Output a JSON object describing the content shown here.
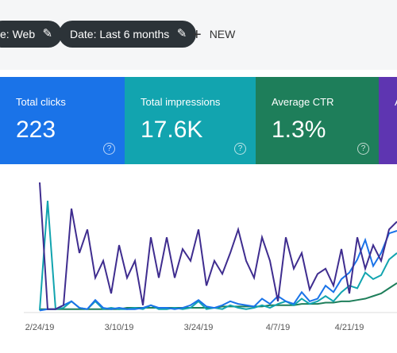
{
  "toolbar": {
    "chips": [
      "e: Web",
      "Date: Last 6 months"
    ],
    "new_button": "NEW"
  },
  "cards": [
    {
      "label": "Total clicks",
      "value": "223",
      "color": "#1a73e8"
    },
    {
      "label": "Total impressions",
      "value": "17.6K",
      "color": "#12a4af"
    },
    {
      "label": "Average CTR",
      "value": "1.3%",
      "color": "#1e7e5a"
    },
    {
      "label": "A",
      "value": "",
      "color": "#5e35b1"
    }
  ],
  "chart_data": {
    "type": "line",
    "categories": [
      "2/24/19",
      null,
      null,
      null,
      null,
      null,
      null,
      null,
      null,
      null,
      "3/10/19",
      null,
      null,
      null,
      null,
      null,
      null,
      null,
      null,
      null,
      "3/24/19",
      null,
      null,
      null,
      null,
      null,
      null,
      null,
      null,
      null,
      "4/7/19",
      null,
      null,
      null,
      null,
      null,
      null,
      null,
      null,
      "4/21/19",
      null,
      null,
      null,
      null,
      null,
      null
    ],
    "series": [
      {
        "color": "#3f2d8f",
        "values": [
          99,
          2,
          2,
          5,
          79,
          45,
          63,
          26,
          39,
          14,
          51,
          26,
          39,
          5,
          57,
          26,
          57,
          26,
          48,
          39,
          63,
          20,
          39,
          29,
          45,
          63,
          39,
          26,
          57,
          39,
          8,
          57,
          33,
          45,
          17,
          29,
          33,
          20,
          48,
          14,
          57,
          33,
          51,
          39,
          63,
          69
        ]
      },
      {
        "color": "#1a73e8",
        "values": [
          1,
          2,
          2,
          5,
          8,
          3,
          2,
          9,
          3,
          2,
          3,
          2,
          2,
          3,
          5,
          3,
          3,
          2,
          3,
          5,
          9,
          4,
          3,
          5,
          8,
          6,
          5,
          4,
          10,
          6,
          12,
          8,
          6,
          15,
          8,
          10,
          20,
          15,
          25,
          30,
          40,
          55,
          35,
          45,
          60,
          62
        ]
      },
      {
        "color": "#12a4af",
        "values": [
          1,
          85,
          2,
          3,
          8,
          3,
          2,
          8,
          2,
          3,
          2,
          2,
          3,
          2,
          5,
          2,
          2,
          3,
          2,
          3,
          8,
          2,
          3,
          2,
          5,
          3,
          2,
          3,
          5,
          3,
          6,
          8,
          5,
          10,
          6,
          8,
          12,
          8,
          15,
          20,
          18,
          30,
          25,
          28,
          40,
          45
        ]
      },
      {
        "color": "#1e7e5a",
        "values": [
          2,
          2,
          2,
          2,
          2,
          2,
          2,
          2,
          2,
          2,
          2,
          3,
          3,
          3,
          3,
          3,
          3,
          3,
          3,
          3,
          3,
          3,
          3,
          4,
          4,
          4,
          4,
          4,
          4,
          5,
          5,
          5,
          5,
          6,
          6,
          6,
          7,
          7,
          8,
          8,
          9,
          10,
          12,
          14,
          18,
          22
        ]
      }
    ]
  }
}
